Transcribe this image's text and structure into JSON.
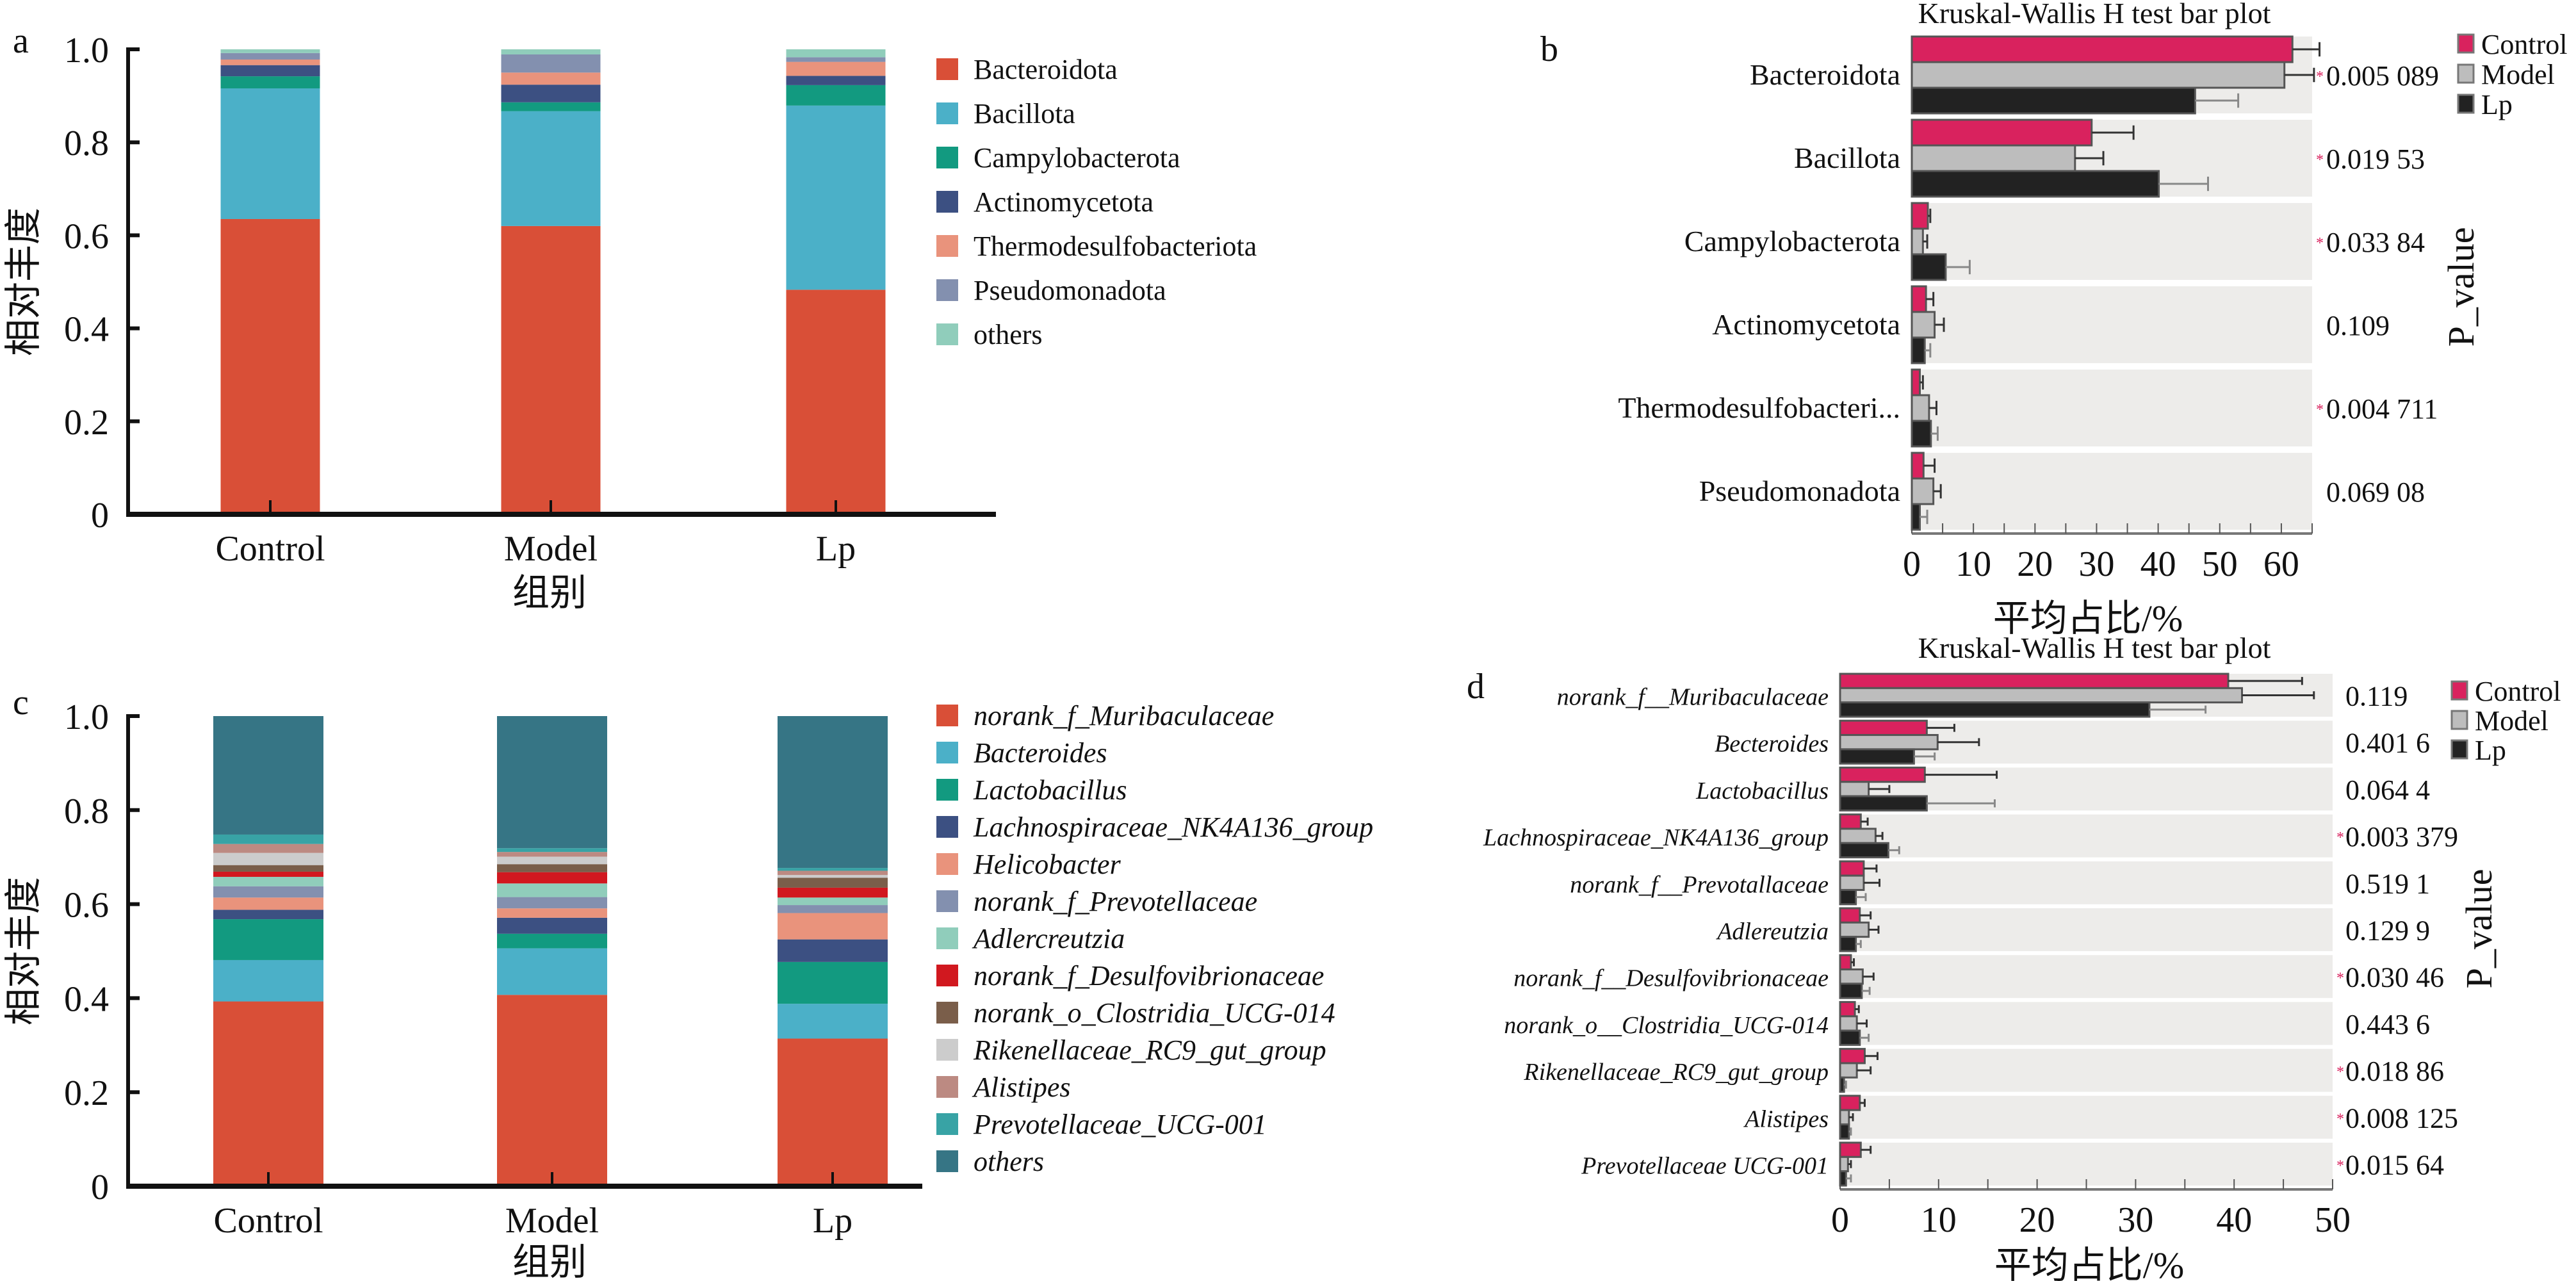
{
  "panel_labels": {
    "a": "a",
    "b": "b",
    "c": "c",
    "d": "d"
  },
  "chart_data": [
    {
      "id": "a",
      "type": "bar",
      "stacked": true,
      "title": "",
      "xlabel": "组别",
      "ylabel": "相对丰度",
      "ylim": [
        0,
        1.0
      ],
      "yticks": [
        "0",
        "0.2",
        "0.4",
        "0.6",
        "0.8",
        "1.0"
      ],
      "ytick_values": [
        0,
        0.2,
        0.4,
        0.6,
        0.8,
        1.0
      ],
      "categories": [
        "Control",
        "Model",
        "Lp"
      ],
      "legend_position": "right",
      "legend_italic": false,
      "series": [
        {
          "name": "Bacteroidota",
          "color": "#D94F37",
          "values": [
            0.635,
            0.62,
            0.483
          ]
        },
        {
          "name": "Bacillota",
          "color": "#4BB0C8",
          "values": [
            0.281,
            0.247,
            0.396
          ]
        },
        {
          "name": "Campylobacterota",
          "color": "#129A80",
          "values": [
            0.026,
            0.019,
            0.044
          ]
        },
        {
          "name": "Actinomycetota",
          "color": "#3C5082",
          "values": [
            0.024,
            0.038,
            0.02
          ]
        },
        {
          "name": "Thermodesulfobacteriota",
          "color": "#E9937C",
          "values": [
            0.012,
            0.026,
            0.03
          ]
        },
        {
          "name": "Pseudomonadota",
          "color": "#8390AF",
          "values": [
            0.014,
            0.039,
            0.01
          ]
        },
        {
          "name": "others",
          "color": "#90CDBB",
          "values": [
            0.008,
            0.011,
            0.017
          ]
        }
      ]
    },
    {
      "id": "b",
      "type": "bar",
      "orientation": "horizontal",
      "title": "Kruskal-Wallis H test bar plot",
      "xlabel": "平均占比/%",
      "ylabel": "",
      "right_axis_label": "P_value",
      "xlim": [
        0,
        65
      ],
      "xticks": [
        "0",
        "10",
        "20",
        "30",
        "40",
        "50",
        "60"
      ],
      "xtick_values": [
        0,
        10,
        20,
        30,
        40,
        50,
        60
      ],
      "legend_position": "top-right",
      "categories": [
        "Bacteroidota",
        "Bacillota",
        "Campylobacterota",
        "Actinomycetota",
        "Thermodesulfobacteri...",
        "Pseudomonadota"
      ],
      "p_values": [
        "0.005 089",
        "0.019 53",
        "0.033 84",
        "0.109",
        "0.004 711",
        "0.069 08"
      ],
      "significant": [
        true,
        true,
        true,
        false,
        true,
        false
      ],
      "series": [
        {
          "name": "Control",
          "color": "#D9225E",
          "values": [
            61.8,
            29.2,
            2.6,
            2.3,
            1.3,
            1.9
          ],
          "err_upper": [
            66.2,
            36.0,
            3.0,
            3.5,
            1.8,
            3.7
          ]
        },
        {
          "name": "Model",
          "color": "#BDBDBD",
          "values": [
            60.5,
            26.5,
            1.8,
            3.7,
            2.8,
            3.5
          ],
          "err_upper": [
            65.3,
            31.1,
            2.5,
            5.2,
            4.0,
            4.7
          ]
        },
        {
          "name": "Lp",
          "color": "#222222",
          "values": [
            46.0,
            40.1,
            5.5,
            2.1,
            3.1,
            1.3
          ],
          "err_upper": [
            53.0,
            48.1,
            9.4,
            3.0,
            4.2,
            2.5
          ]
        }
      ]
    },
    {
      "id": "c",
      "type": "bar",
      "stacked": true,
      "title": "",
      "xlabel": "组别",
      "ylabel": "相对丰度",
      "ylim": [
        0,
        1.0
      ],
      "yticks": [
        "0",
        "0.2",
        "0.4",
        "0.6",
        "0.8",
        "1.0"
      ],
      "ytick_values": [
        0,
        0.2,
        0.4,
        0.6,
        0.8,
        1.0
      ],
      "categories": [
        "Control",
        "Model",
        "Lp"
      ],
      "legend_position": "right",
      "legend_italic": true,
      "series": [
        {
          "name": "norank_f_Muribaculaceae",
          "color": "#D94F37",
          "values": [
            0.393,
            0.407,
            0.314
          ]
        },
        {
          "name": "Bacteroides",
          "color": "#4BB0C8",
          "values": [
            0.088,
            0.099,
            0.074
          ]
        },
        {
          "name": "Lactobacillus",
          "color": "#129A80",
          "values": [
            0.087,
            0.031,
            0.089
          ]
        },
        {
          "name": "Lachnospiraceae_NK4A136_group",
          "color": "#3C5082",
          "values": [
            0.02,
            0.034,
            0.048
          ]
        },
        {
          "name": "Helicobacter",
          "color": "#E9937C",
          "values": [
            0.026,
            0.02,
            0.056
          ]
        },
        {
          "name": "norank_f_Prevotellaceae",
          "color": "#8390AF",
          "values": [
            0.024,
            0.024,
            0.017
          ]
        },
        {
          "name": "Adlercreutzia",
          "color": "#90CDBB",
          "values": [
            0.02,
            0.029,
            0.016
          ]
        },
        {
          "name": "norank_f_Desulfovibrionaceae",
          "color": "#D1181F",
          "values": [
            0.011,
            0.024,
            0.021
          ]
        },
        {
          "name": "norank_o_Clostridia_UCG-014",
          "color": "#7A5E4A",
          "values": [
            0.014,
            0.017,
            0.021
          ]
        },
        {
          "name": "Rikenellaceae_RC9_gut_group",
          "color": "#CCCCCC",
          "values": [
            0.026,
            0.016,
            0.006
          ]
        },
        {
          "name": "Alistipes",
          "color": "#BC8A82",
          "values": [
            0.019,
            0.01,
            0.009
          ]
        },
        {
          "name": "Prevotellaceae_UCG-001",
          "color": "#38A3A5",
          "values": [
            0.02,
            0.008,
            0.006
          ]
        },
        {
          "name": "others",
          "color": "#367585",
          "values": [
            0.252,
            0.281,
            0.323
          ]
        }
      ]
    },
    {
      "id": "d",
      "type": "bar",
      "orientation": "horizontal",
      "title": "Kruskal-Wallis H test bar plot",
      "xlabel": "平均占比/%",
      "ylabel": "",
      "right_axis_label": "P_value",
      "xlim": [
        0,
        50
      ],
      "xticks": [
        "0",
        "10",
        "20",
        "30",
        "40",
        "50"
      ],
      "xtick_values": [
        0,
        10,
        20,
        30,
        40,
        50
      ],
      "legend_position": "top-right",
      "categories": [
        "norank_f__Muribaculaceae",
        "Becteroides",
        "Lactobacillus",
        "Lachnospiraceae_NK4A136_group",
        "norank_f__Prevotallaceae",
        "Adlereutzia",
        "norank_f__Desulfovibrionaceae",
        "norank_o__Clostridia_UCG-014",
        "Rikenellaceae_RC9_gut_group",
        "Alistipes",
        "Prevotellaceae UCG-001"
      ],
      "p_values": [
        "0.119",
        "0.401 6",
        "0.064 4",
        "0.003 379",
        "0.519 1",
        "0.129 9",
        "0.030 46",
        "0.443 6",
        "0.018 86",
        "0.008 125",
        "0.015 64"
      ],
      "significant": [
        false,
        false,
        false,
        true,
        false,
        false,
        true,
        false,
        true,
        true,
        true
      ],
      "series": [
        {
          "name": "Control",
          "color": "#D9225E",
          "values": [
            39.4,
            8.8,
            8.6,
            2.1,
            2.4,
            2.0,
            1.1,
            1.5,
            2.5,
            2.0,
            2.1
          ],
          "err_upper": [
            46.9,
            11.6,
            15.9,
            2.8,
            3.7,
            3.1,
            1.4,
            1.9,
            3.8,
            2.5,
            3.1
          ]
        },
        {
          "name": "Model",
          "color": "#BDBDBD",
          "values": [
            40.8,
            9.9,
            2.9,
            3.6,
            2.4,
            2.9,
            2.3,
            1.7,
            1.7,
            0.9,
            0.8
          ],
          "err_upper": [
            48.1,
            14.1,
            5.0,
            4.3,
            4.0,
            3.9,
            3.4,
            2.7,
            3.1,
            1.3,
            1.1
          ]
        },
        {
          "name": "Lp",
          "color": "#222222",
          "values": [
            31.4,
            7.5,
            8.8,
            4.9,
            1.6,
            1.6,
            2.2,
            2.0,
            0.4,
            0.9,
            0.6
          ],
          "err_upper": [
            37.1,
            9.6,
            15.7,
            6.0,
            2.6,
            2.1,
            3.0,
            2.9,
            0.6,
            1.1,
            1.1
          ]
        }
      ]
    }
  ]
}
